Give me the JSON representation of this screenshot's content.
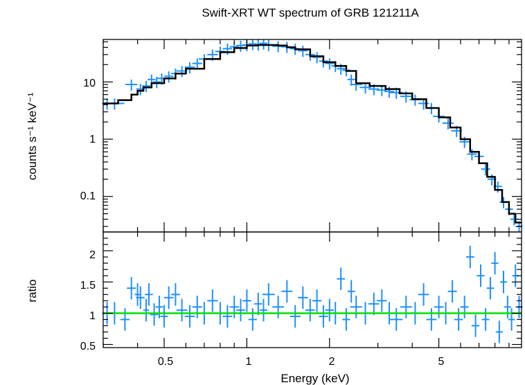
{
  "chart_data": {
    "type": "scatter",
    "title": "Swift-XRT WT spectrum of GRB 121211A",
    "xlabel": "Energy (keV)",
    "xscale": "log",
    "xlim": [
      0.3,
      10
    ],
    "x_ticks": [
      0.5,
      1,
      2,
      5
    ],
    "x_tick_labels": [
      "0.5",
      "1",
      "2",
      "5"
    ],
    "colors": {
      "data": "#1e90ff",
      "model": "#000000",
      "unity": "#00e000"
    },
    "panels": [
      {
        "name": "spectrum",
        "ylabel": "counts s⁻¹ keV⁻¹",
        "yscale": "log",
        "ylim": [
          0.024,
          55
        ],
        "y_ticks": [
          0.1,
          1,
          10
        ],
        "y_tick_labels": [
          "0.1",
          "1",
          "10"
        ],
        "series": [
          {
            "kind": "model-step",
            "x": [
              0.3,
              0.34,
              0.38,
              0.4,
              0.42,
              0.45,
              0.5,
              0.55,
              0.6,
              0.7,
              0.8,
              0.9,
              1.0,
              1.1,
              1.2,
              1.3,
              1.4,
              1.5,
              1.7,
              1.9,
              2.1,
              2.3,
              2.5,
              2.8,
              3.2,
              3.6,
              4.0,
              4.5,
              5.0,
              5.5,
              6.0,
              6.5,
              7.0,
              7.5,
              8.0,
              8.5,
              9.0,
              9.5,
              10.0
            ],
            "y": [
              4.2,
              4.8,
              6.0,
              7.0,
              8.0,
              9.5,
              11.5,
              14.0,
              17.0,
              25.0,
              33.0,
              39.0,
              43.0,
              44.0,
              44.0,
              43.0,
              40.0,
              37.0,
              28.0,
              22.0,
              19.0,
              15.5,
              9.5,
              8.5,
              7.5,
              6.3,
              5.0,
              3.5,
              2.4,
              1.6,
              1.0,
              0.6,
              0.38,
              0.22,
              0.13,
              0.08,
              0.05,
              0.035,
              0.025
            ]
          },
          {
            "kind": "data",
            "x": [
              0.31,
              0.33,
              0.38,
              0.41,
              0.43,
              0.45,
              0.47,
              0.49,
              0.52,
              0.55,
              0.58,
              0.62,
              0.66,
              0.7,
              0.75,
              0.8,
              0.85,
              0.9,
              0.95,
              1.0,
              1.05,
              1.1,
              1.15,
              1.2,
              1.3,
              1.4,
              1.5,
              1.6,
              1.7,
              1.8,
              1.9,
              2.0,
              2.1,
              2.2,
              2.3,
              2.4,
              2.5,
              2.7,
              2.9,
              3.1,
              3.3,
              3.5,
              3.8,
              4.1,
              4.4,
              4.7,
              5.0,
              5.4,
              5.8,
              6.2,
              6.6,
              7.0,
              7.4,
              7.8,
              8.2,
              8.6,
              9.0,
              9.4,
              9.8
            ],
            "y": [
              4.2,
              4.2,
              9.0,
              7.5,
              8.5,
              11.0,
              10.0,
              11.5,
              12.5,
              14.0,
              15.5,
              18.0,
              21.0,
              25.0,
              30.0,
              34.0,
              38.0,
              41.0,
              43.0,
              44.0,
              46.0,
              45.0,
              47.0,
              44.0,
              42.0,
              41.0,
              38.0,
              35.0,
              30.0,
              27.0,
              23.0,
              21.0,
              19.0,
              17.0,
              16.0,
              11.0,
              9.0,
              8.0,
              7.5,
              7.2,
              6.8,
              6.5,
              5.6,
              4.9,
              4.2,
              3.5,
              2.5,
              1.9,
              1.4,
              0.9,
              0.55,
              0.5,
              0.3,
              0.2,
              0.15,
              0.08,
              0.06,
              0.04,
              0.03
            ]
          }
        ]
      },
      {
        "name": "ratio",
        "ylabel": "ratio",
        "yscale": "linear",
        "ylim": [
          0.45,
          2.3
        ],
        "y_ticks": [
          0.5,
          1,
          1.5,
          2
        ],
        "y_tick_labels": [
          "0.5",
          "1",
          "1.5",
          "2"
        ],
        "series": [
          {
            "kind": "reference-line",
            "y": 1.0
          },
          {
            "kind": "data",
            "x": [
              0.31,
              0.33,
              0.36,
              0.38,
              0.4,
              0.41,
              0.43,
              0.44,
              0.46,
              0.48,
              0.5,
              0.52,
              0.55,
              0.58,
              0.62,
              0.66,
              0.7,
              0.75,
              0.8,
              0.85,
              0.9,
              0.95,
              1.0,
              1.05,
              1.1,
              1.15,
              1.2,
              1.3,
              1.4,
              1.5,
              1.6,
              1.7,
              1.8,
              1.9,
              2.0,
              2.1,
              2.2,
              2.3,
              2.4,
              2.5,
              2.7,
              2.9,
              3.1,
              3.3,
              3.5,
              3.8,
              4.1,
              4.4,
              4.7,
              5.0,
              5.3,
              5.6,
              5.9,
              6.2,
              6.5,
              6.8,
              7.1,
              7.4,
              7.7,
              8.0,
              8.3,
              8.6,
              8.9,
              9.2,
              9.5,
              9.8
            ],
            "y": [
              1.0,
              1.0,
              0.9,
              1.4,
              1.3,
              1.25,
              1.05,
              1.3,
              0.98,
              1.1,
              0.95,
              1.25,
              1.3,
              1.05,
              0.95,
              1.1,
              1.0,
              1.2,
              1.0,
              0.95,
              1.1,
              1.05,
              1.2,
              0.9,
              1.15,
              1.05,
              1.3,
              1.1,
              1.35,
              0.95,
              1.25,
              1.05,
              1.2,
              0.95,
              1.05,
              1.0,
              1.55,
              0.9,
              1.35,
              1.1,
              1.0,
              1.15,
              1.2,
              1.0,
              0.9,
              1.1,
              1.0,
              1.3,
              0.9,
              1.1,
              1.0,
              1.35,
              0.9,
              1.1,
              1.9,
              0.8,
              1.6,
              0.9,
              1.4,
              1.8,
              0.7,
              1.5,
              1.1,
              0.9,
              1.6,
              1.1
            ]
          }
        ]
      }
    ]
  }
}
